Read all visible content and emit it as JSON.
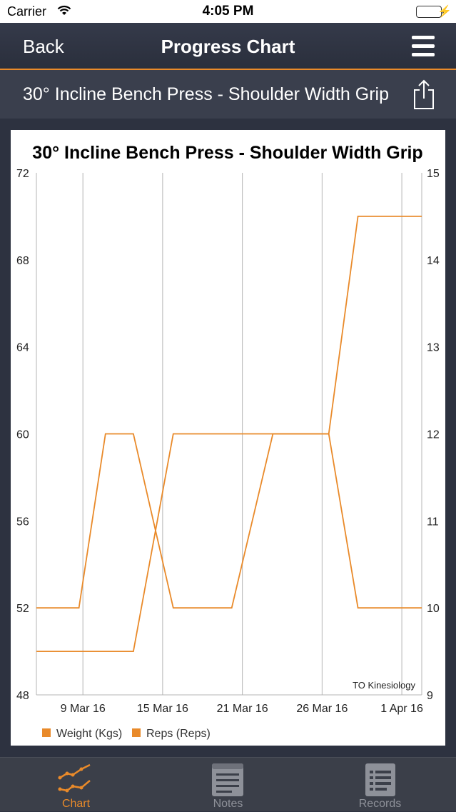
{
  "status_bar": {
    "carrier": "Carrier",
    "time": "4:05 PM"
  },
  "nav": {
    "back_label": "Back",
    "title": "Progress Chart"
  },
  "exercise": {
    "name": "30° Incline Bench Press - Shoulder Width Grip"
  },
  "colors": {
    "accent": "#e98a2a",
    "header_bg": "#2d3240"
  },
  "chart_data": {
    "type": "line",
    "title": "30° Incline Bench Press - Shoulder Width Grip",
    "watermark": "TO Kinesiology",
    "x_ticks": [
      "9 Mar 16",
      "15 Mar 16",
      "21 Mar 16",
      "26 Mar 16",
      "1 Apr 16"
    ],
    "x_tick_positions": [
      3.5,
      9.5,
      15.5,
      21.5,
      27.5
    ],
    "x_range": [
      0,
      29
    ],
    "y_left": {
      "ticks": [
        "72",
        "68",
        "64",
        "60",
        "56",
        "52",
        "48"
      ],
      "range": [
        48,
        72
      ]
    },
    "y_right": {
      "ticks": [
        "15",
        "14",
        "13",
        "12",
        "11",
        "10",
        "9"
      ],
      "range": [
        9,
        15
      ]
    },
    "series": [
      {
        "name": "Weight (Kgs)",
        "axis": "left",
        "color": "#e98a2a",
        "points": [
          [
            0,
            52
          ],
          [
            3.2,
            52
          ],
          [
            5.2,
            60
          ],
          [
            7.3,
            60
          ],
          [
            10.3,
            52
          ],
          [
            14.7,
            52
          ],
          [
            17.8,
            60
          ],
          [
            22,
            60
          ],
          [
            24.2,
            52
          ],
          [
            29,
            52
          ]
        ]
      },
      {
        "name": "Reps (Reps)",
        "axis": "right",
        "color": "#e98a2a",
        "points": [
          [
            0,
            9.5
          ],
          [
            7.3,
            9.5
          ],
          [
            10.3,
            12
          ],
          [
            22,
            12
          ],
          [
            24.2,
            14.5
          ],
          [
            29,
            14.5
          ]
        ]
      }
    ]
  },
  "tabs": [
    {
      "label": "Chart",
      "icon": "chart-icon",
      "active": true
    },
    {
      "label": "Notes",
      "icon": "notes-icon",
      "active": false
    },
    {
      "label": "Records",
      "icon": "records-icon",
      "active": false
    }
  ]
}
